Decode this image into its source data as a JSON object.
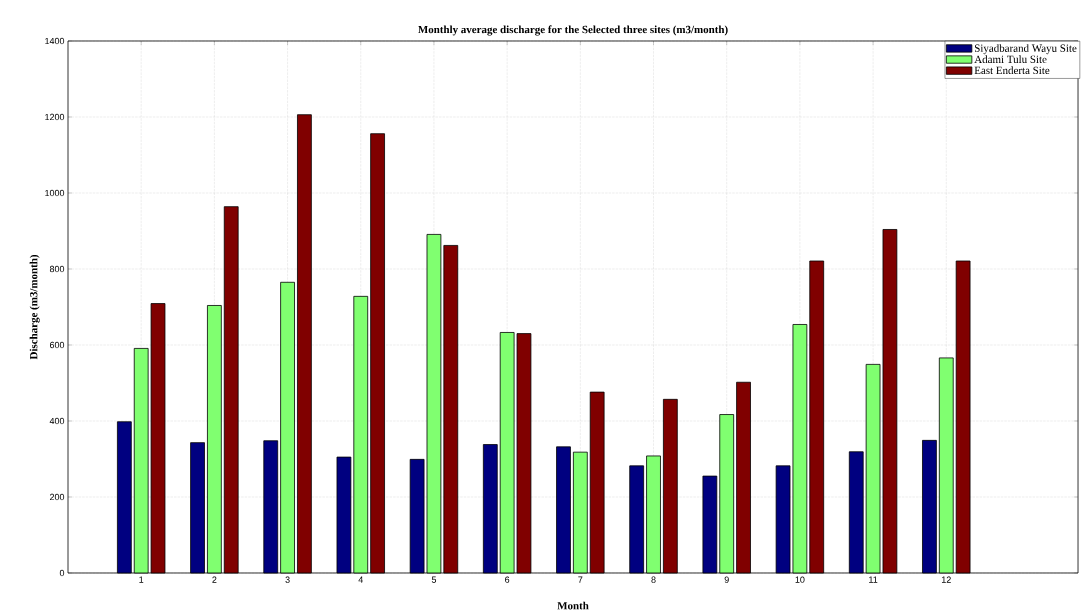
{
  "chart_data": {
    "type": "bar",
    "title": "Monthly average discharge for the Selected three sites (m3/month)",
    "xlabel": "Month",
    "ylabel": "Discharge (m3/month)",
    "x": [
      1,
      2,
      3,
      4,
      5,
      6,
      7,
      8,
      9,
      10,
      11,
      12
    ],
    "series": [
      {
        "name": "Siyadbarand Wayu Site",
        "color": "#000080",
        "values": [
          398,
          343,
          348,
          305,
          299,
          338,
          332,
          282,
          255,
          282,
          319,
          349
        ]
      },
      {
        "name": "Adami Tulu Site",
        "color": "#80ff70",
        "values": [
          591,
          704,
          765,
          728,
          891,
          633,
          318,
          308,
          417,
          654,
          549,
          566
        ]
      },
      {
        "name": "East Enderta Site",
        "color": "#800000",
        "values": [
          709,
          964,
          1206,
          1156,
          862,
          630,
          476,
          457,
          502,
          821,
          904,
          821
        ]
      }
    ],
    "xlim": [
      0,
      13.8
    ],
    "xticks": [
      1,
      2,
      3,
      4,
      5,
      6,
      7,
      8,
      9,
      10,
      11,
      12
    ],
    "ylim": [
      0,
      1400
    ],
    "yticks": [
      0,
      200,
      400,
      600,
      800,
      1000,
      1200,
      1400
    ],
    "grid": true,
    "legend": "top right"
  }
}
